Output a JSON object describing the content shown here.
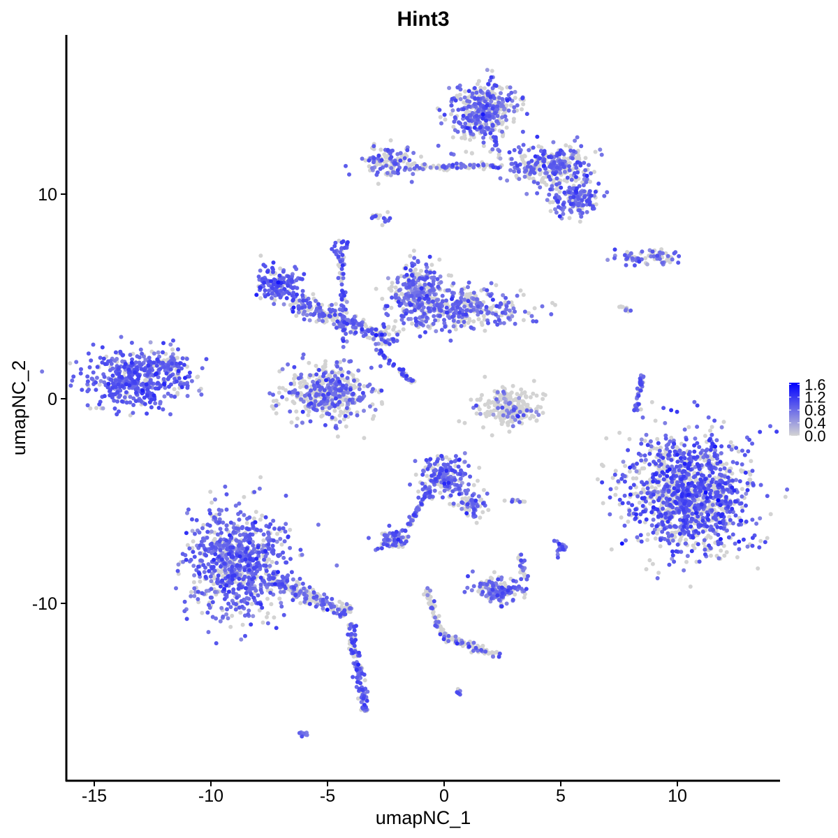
{
  "chart_data": {
    "type": "scatter",
    "title": "Hint3",
    "xlabel": "umapNC_1",
    "ylabel": "umapNC_2",
    "xlim": [
      -16.2,
      14.3
    ],
    "ylim": [
      -18.7,
      17.8
    ],
    "xticks": [
      -15,
      -10,
      -5,
      0,
      5,
      10
    ],
    "yticks": [
      -10,
      0,
      10
    ],
    "xtick_labels": [
      "-15",
      "-10",
      "-5",
      "0",
      "5",
      "10"
    ],
    "ytick_labels": [
      "-10",
      "0",
      "10"
    ],
    "grid": false,
    "legend": {
      "placement": "right",
      "type": "colorbar",
      "ticks": [
        0.0,
        0.4,
        0.8,
        1.2,
        1.6
      ],
      "tick_labels": [
        "0.0",
        "0.4",
        "0.8",
        "1.2",
        "1.6"
      ],
      "range": [
        0,
        1.65
      ]
    },
    "colors": {
      "low": "#d3d3d3",
      "high": "#0000ff"
    },
    "clusters": [
      {
        "center": [
          -13.2,
          1.0
        ],
        "spread": [
          1.0,
          0.7
        ],
        "n": 450,
        "expressed_fraction": 0.85,
        "mean_expression": 0.9
      },
      {
        "center": [
          -11.8,
          1.6
        ],
        "spread": [
          0.4,
          0.5
        ],
        "n": 60,
        "expressed_fraction": 0.7,
        "mean_expression": 0.8
      },
      {
        "center": [
          -8.8,
          -8.0
        ],
        "spread": [
          1.1,
          1.3
        ],
        "n": 800,
        "expressed_fraction": 0.75,
        "mean_expression": 0.85
      },
      {
        "center": [
          -7.1,
          5.6
        ],
        "spread": [
          0.5,
          0.45
        ],
        "n": 150,
        "expressed_fraction": 0.8,
        "mean_expression": 0.9
      },
      {
        "center": [
          -5.0,
          0.3
        ],
        "spread": [
          0.95,
          0.65
        ],
        "n": 450,
        "expressed_fraction": 0.45,
        "mean_expression": 0.8
      },
      {
        "center": [
          -1.2,
          5.2
        ],
        "spread": [
          0.5,
          0.7
        ],
        "n": 250,
        "expressed_fraction": 0.6,
        "mean_expression": 0.8
      },
      {
        "center": [
          0.8,
          4.4
        ],
        "spread": [
          1.3,
          0.5
        ],
        "n": 350,
        "expressed_fraction": 0.55,
        "mean_expression": 0.8
      },
      {
        "center": [
          1.7,
          14.0
        ],
        "spread": [
          0.7,
          0.8
        ],
        "n": 400,
        "expressed_fraction": 0.55,
        "mean_expression": 0.85
      },
      {
        "center": [
          4.5,
          11.4
        ],
        "spread": [
          0.9,
          0.5
        ],
        "n": 300,
        "expressed_fraction": 0.55,
        "mean_expression": 0.85
      },
      {
        "center": [
          5.5,
          9.8
        ],
        "spread": [
          0.5,
          0.4
        ],
        "n": 150,
        "expressed_fraction": 0.7,
        "mean_expression": 0.85
      },
      {
        "center": [
          -2.4,
          11.6
        ],
        "spread": [
          0.6,
          0.35
        ],
        "n": 120,
        "expressed_fraction": 0.5,
        "mean_expression": 0.85
      },
      {
        "center": [
          10.5,
          -4.6
        ],
        "spread": [
          1.3,
          1.4
        ],
        "n": 1300,
        "expressed_fraction": 0.6,
        "mean_expression": 0.95
      },
      {
        "center": [
          2.9,
          -0.4
        ],
        "spread": [
          0.7,
          0.45
        ],
        "n": 220,
        "expressed_fraction": 0.2,
        "mean_expression": 0.7
      },
      {
        "center": [
          0.0,
          -3.8
        ],
        "spread": [
          0.5,
          0.5
        ],
        "n": 200,
        "expressed_fraction": 0.65,
        "mean_expression": 0.85
      },
      {
        "center": [
          1.2,
          -5.0
        ],
        "spread": [
          0.4,
          0.4
        ],
        "n": 60,
        "expressed_fraction": 0.5,
        "mean_expression": 0.8
      },
      {
        "center": [
          2.3,
          -9.4
        ],
        "spread": [
          0.5,
          0.3
        ],
        "n": 150,
        "expressed_fraction": 0.7,
        "mean_expression": 0.85
      },
      {
        "center": [
          -2.2,
          -6.9
        ],
        "spread": [
          0.35,
          0.25
        ],
        "n": 70,
        "expressed_fraction": 0.7,
        "mean_expression": 0.85
      },
      {
        "center": [
          8.9,
          6.9
        ],
        "spread": [
          0.8,
          0.2
        ],
        "n": 70,
        "expressed_fraction": 0.5,
        "mean_expression": 0.8
      },
      {
        "center": [
          5.0,
          -7.3
        ],
        "spread": [
          0.15,
          0.25
        ],
        "n": 20,
        "expressed_fraction": 0.8,
        "mean_expression": 0.9
      },
      {
        "center": [
          -2.7,
          8.8
        ],
        "spread": [
          0.2,
          0.15
        ],
        "n": 15,
        "expressed_fraction": 0.8,
        "mean_expression": 0.9
      },
      {
        "center": [
          -4.4,
          7.4
        ],
        "spread": [
          0.2,
          0.2
        ],
        "n": 20,
        "expressed_fraction": 0.8,
        "mean_expression": 1.0
      },
      {
        "center": [
          -6.0,
          -16.4
        ],
        "spread": [
          0.1,
          0.08
        ],
        "n": 8,
        "expressed_fraction": 0.9,
        "mean_expression": 0.9
      },
      {
        "center": [
          0.6,
          -14.3
        ],
        "spread": [
          0.1,
          0.08
        ],
        "n": 6,
        "expressed_fraction": 0.9,
        "mean_expression": 0.9
      },
      {
        "center": [
          2.9,
          -5.0
        ],
        "spread": [
          0.3,
          0.06
        ],
        "n": 10,
        "expressed_fraction": 0.5,
        "mean_expression": 0.8
      }
    ],
    "streams": [
      {
        "from": [
          -7.5,
          -8.8
        ],
        "to": [
          -4.0,
          -10.5
        ],
        "width": 0.35,
        "n": 200,
        "expressed_fraction": 0.55,
        "mean_expression": 0.85
      },
      {
        "from": [
          -4.0,
          -11.0
        ],
        "to": [
          -3.4,
          -15.3
        ],
        "width": 0.2,
        "n": 120,
        "expressed_fraction": 0.7,
        "mean_expression": 0.9
      },
      {
        "from": [
          -1.7,
          11.3
        ],
        "to": [
          2.5,
          11.4
        ],
        "width": 0.15,
        "n": 80,
        "expressed_fraction": 0.5,
        "mean_expression": 0.8
      },
      {
        "from": [
          -4.3,
          2.5
        ],
        "to": [
          -4.4,
          7.0
        ],
        "width": 0.15,
        "n": 60,
        "expressed_fraction": 0.7,
        "mean_expression": 0.9
      },
      {
        "from": [
          -6.5,
          4.8
        ],
        "to": [
          -2.0,
          2.8
        ],
        "width": 0.5,
        "n": 250,
        "expressed_fraction": 0.5,
        "mean_expression": 0.85
      },
      {
        "from": [
          -3.0,
          2.5
        ],
        "to": [
          -1.3,
          0.8
        ],
        "width": 0.1,
        "n": 50,
        "expressed_fraction": 0.7,
        "mean_expression": 1.0
      },
      {
        "from": [
          -0.8,
          -9.2
        ],
        "to": [
          0.0,
          -11.8
        ],
        "width": 0.15,
        "n": 60,
        "expressed_fraction": 0.4,
        "mean_expression": 0.8
      },
      {
        "from": [
          0.0,
          -11.6
        ],
        "to": [
          2.4,
          -12.6
        ],
        "width": 0.15,
        "n": 80,
        "expressed_fraction": 0.3,
        "mean_expression": 0.8
      },
      {
        "from": [
          -1.7,
          -6.6
        ],
        "to": [
          -0.6,
          -4.3
        ],
        "width": 0.12,
        "n": 50,
        "expressed_fraction": 0.6,
        "mean_expression": 0.85
      },
      {
        "from": [
          8.2,
          -0.6
        ],
        "to": [
          8.5,
          1.2
        ],
        "width": 0.12,
        "n": 50,
        "expressed_fraction": 0.6,
        "mean_expression": 0.85
      },
      {
        "from": [
          1.2,
          -5.0
        ],
        "to": [
          1.3,
          -5.8
        ],
        "width": 0.1,
        "n": 20,
        "expressed_fraction": 0.6,
        "mean_expression": 0.8
      },
      {
        "from": [
          3.2,
          -7.5
        ],
        "to": [
          3.5,
          -9.0
        ],
        "width": 0.15,
        "n": 25,
        "expressed_fraction": 0.5,
        "mean_expression": 0.8
      },
      {
        "from": [
          7.5,
          4.5
        ],
        "to": [
          8.0,
          4.3
        ],
        "width": 0.1,
        "n": 10,
        "expressed_fraction": 0.2,
        "mean_expression": 0.8
      }
    ]
  }
}
